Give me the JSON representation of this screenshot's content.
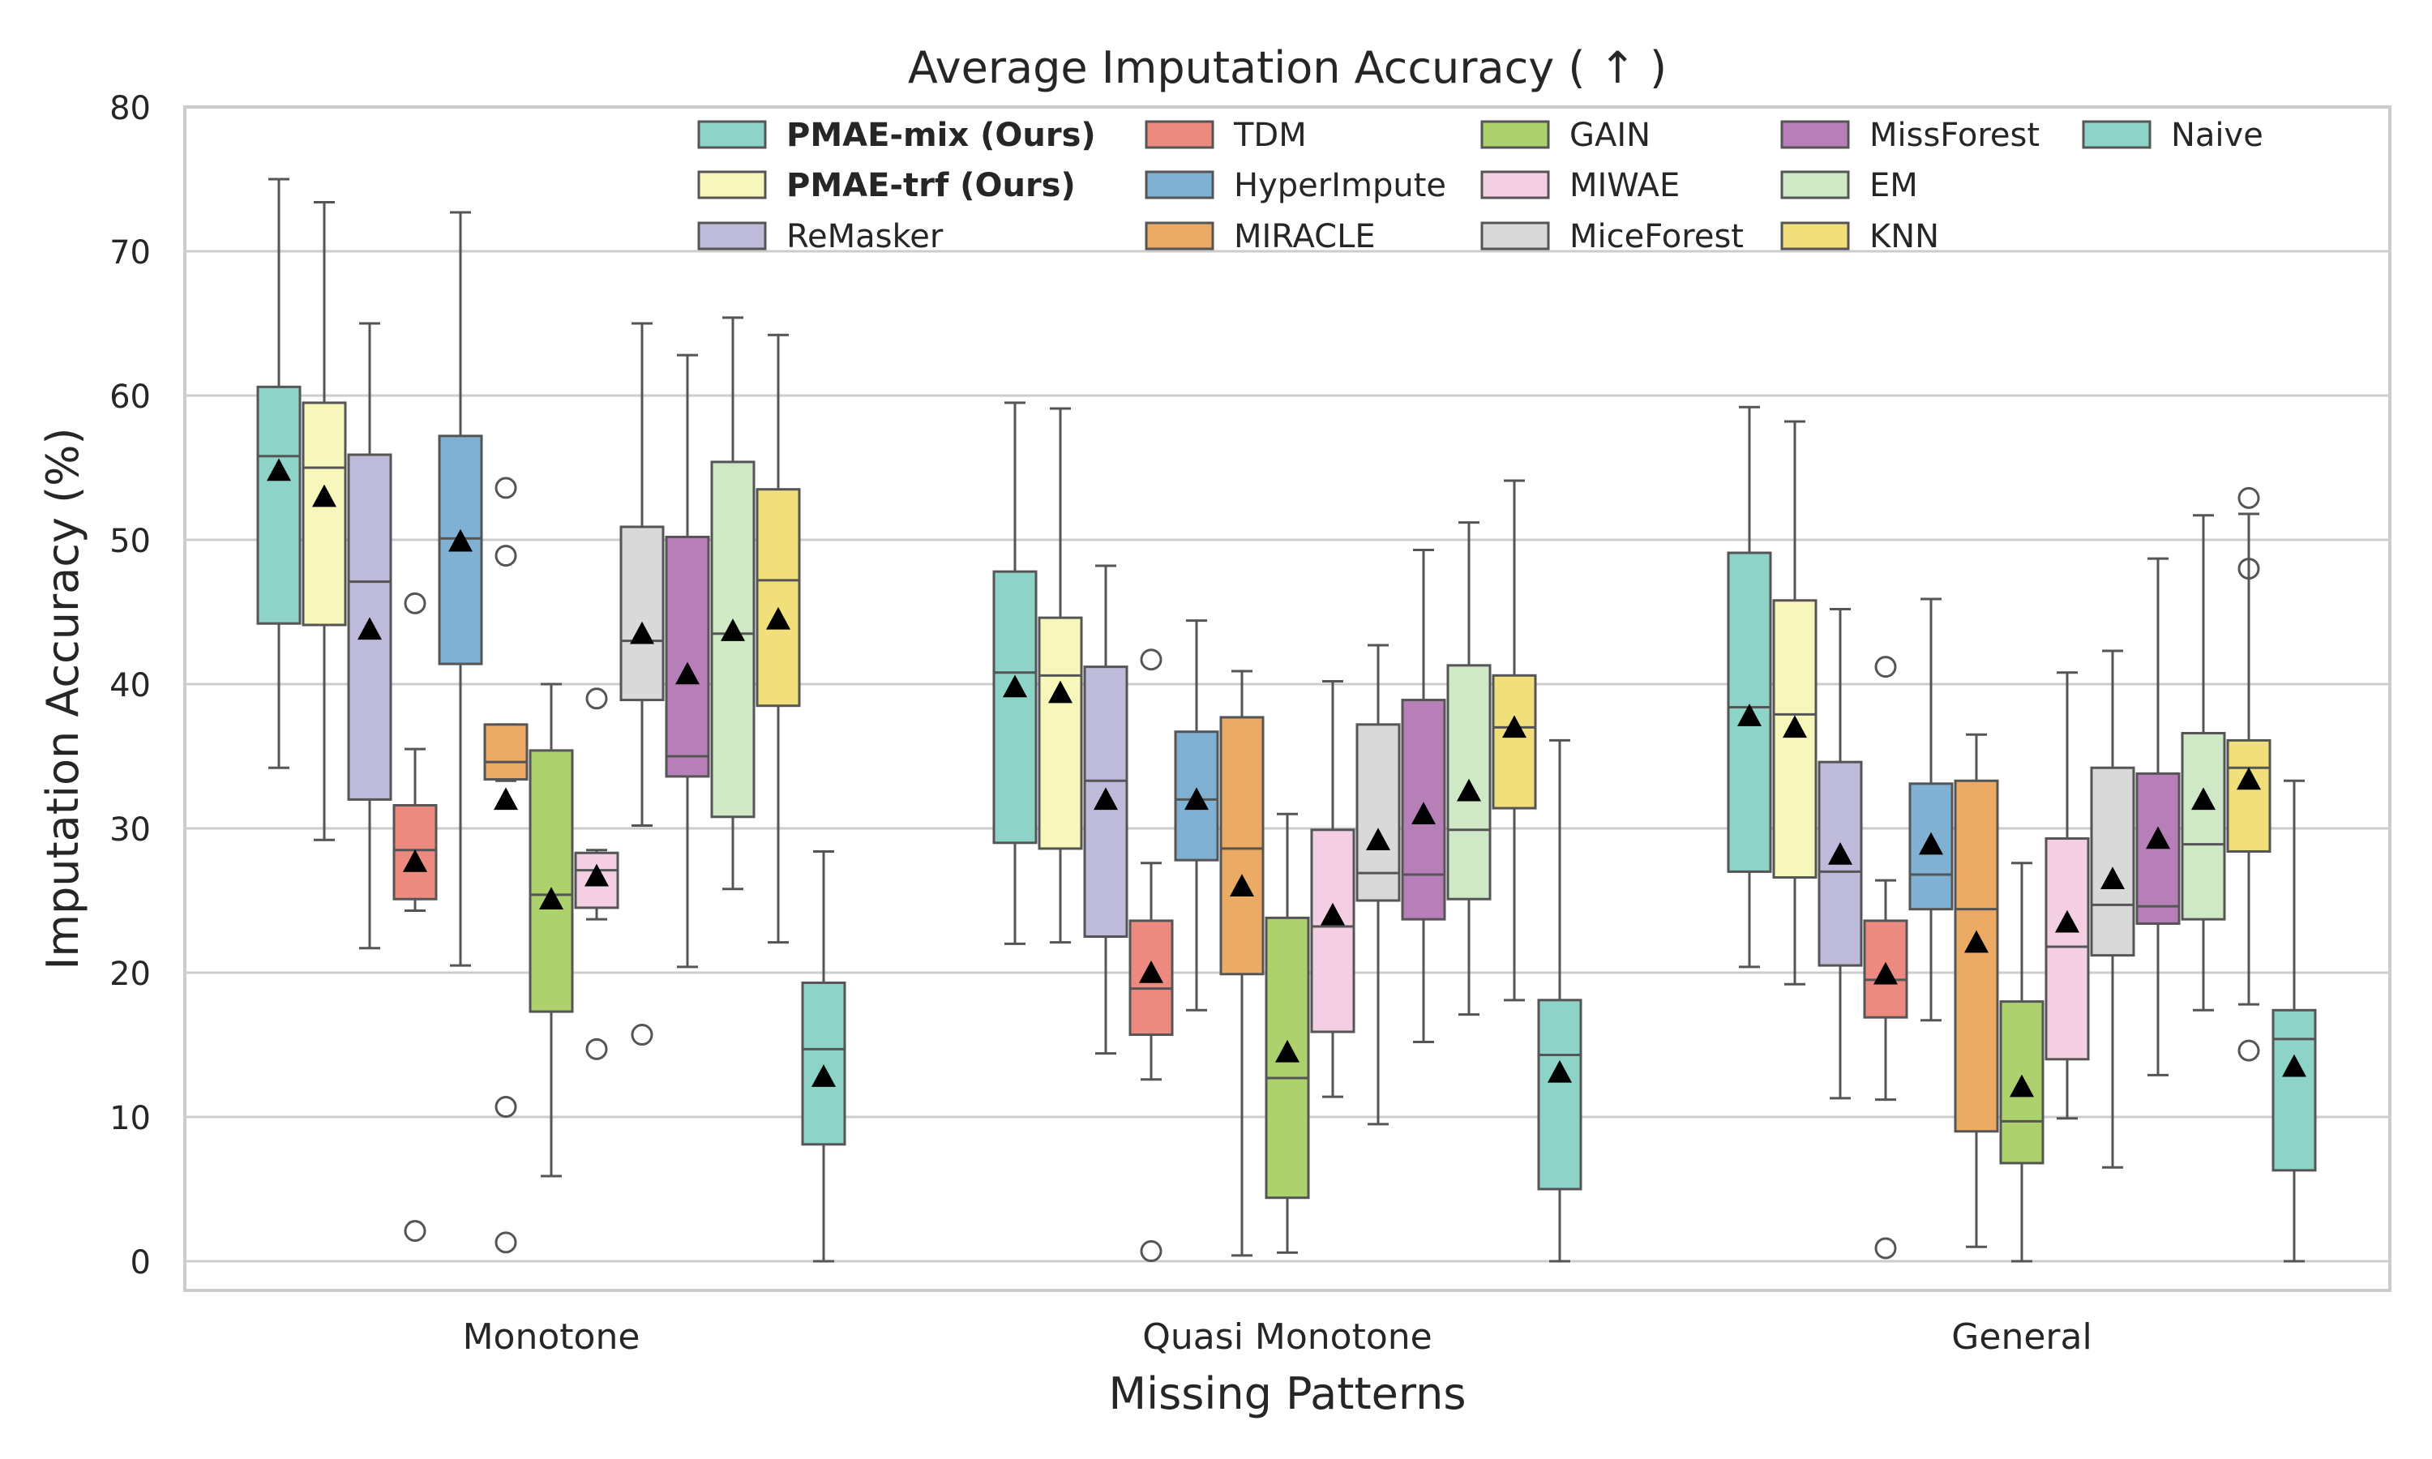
{
  "chart_data": {
    "type": "box",
    "title": "Average Imputation Accuracy ( ↑ )",
    "xlabel": "Missing Patterns",
    "ylabel": "Imputation Accuracy (%)",
    "ylim": [
      -2,
      80
    ],
    "yticks": [
      0,
      10,
      20,
      30,
      40,
      50,
      60,
      70,
      80
    ],
    "grid": true,
    "legend_position": "top",
    "categories": [
      "Monotone",
      "Quasi Monotone",
      "General"
    ],
    "series": [
      {
        "name": "PMAE-mix (Ours)",
        "bold": true,
        "color": "#8dd3c7",
        "boxes": [
          {
            "whislo": 34.2,
            "q1": 44.2,
            "med": 55.8,
            "q3": 60.6,
            "whishi": 75.0,
            "mean": 54.8,
            "fliers": []
          },
          {
            "whislo": 22.0,
            "q1": 29.0,
            "med": 40.8,
            "q3": 47.8,
            "whishi": 59.5,
            "mean": 39.8,
            "fliers": []
          },
          {
            "whislo": 20.4,
            "q1": 27.0,
            "med": 38.4,
            "q3": 49.1,
            "whishi": 59.2,
            "mean": 37.8,
            "fliers": []
          }
        ]
      },
      {
        "name": "PMAE-trf (Ours)",
        "bold": true,
        "color": "#f8f7bb",
        "boxes": [
          {
            "whislo": 29.2,
            "q1": 44.1,
            "med": 55.0,
            "q3": 59.5,
            "whishi": 73.4,
            "mean": 53.0,
            "fliers": []
          },
          {
            "whislo": 22.1,
            "q1": 28.6,
            "med": 40.6,
            "q3": 44.6,
            "whishi": 59.1,
            "mean": 39.4,
            "fliers": []
          },
          {
            "whislo": 19.2,
            "q1": 26.6,
            "med": 37.9,
            "q3": 45.8,
            "whishi": 58.2,
            "mean": 37.0,
            "fliers": []
          }
        ]
      },
      {
        "name": "ReMasker",
        "bold": false,
        "color": "#bebada",
        "boxes": [
          {
            "whislo": 21.7,
            "q1": 32.0,
            "med": 47.1,
            "q3": 55.9,
            "whishi": 65.0,
            "mean": 43.8,
            "fliers": []
          },
          {
            "whislo": 14.4,
            "q1": 22.5,
            "med": 33.3,
            "q3": 41.2,
            "whishi": 48.2,
            "mean": 32.0,
            "fliers": []
          },
          {
            "whislo": 11.3,
            "q1": 20.5,
            "med": 27.0,
            "q3": 34.6,
            "whishi": 45.2,
            "mean": 28.2,
            "fliers": []
          }
        ]
      },
      {
        "name": "TDM",
        "bold": false,
        "color": "#ec8a80",
        "boxes": [
          {
            "whislo": 24.3,
            "q1": 25.1,
            "med": 28.5,
            "q3": 31.6,
            "whishi": 35.5,
            "mean": 27.7,
            "fliers": [
              45.6,
              2.1
            ]
          },
          {
            "whislo": 12.6,
            "q1": 15.7,
            "med": 18.9,
            "q3": 23.6,
            "whishi": 27.6,
            "mean": 20.0,
            "fliers": [
              41.7,
              0.7
            ]
          },
          {
            "whislo": 11.2,
            "q1": 16.9,
            "med": 19.5,
            "q3": 23.6,
            "whishi": 26.4,
            "mean": 19.9,
            "fliers": [
              41.2,
              0.9
            ]
          }
        ]
      },
      {
        "name": "HyperImpute",
        "bold": false,
        "color": "#80b1d3",
        "boxes": [
          {
            "whislo": 20.5,
            "q1": 41.4,
            "med": 50.1,
            "q3": 57.2,
            "whishi": 72.7,
            "mean": 49.9,
            "fliers": []
          },
          {
            "whislo": 17.4,
            "q1": 27.8,
            "med": 32.0,
            "q3": 36.7,
            "whishi": 44.4,
            "mean": 32.0,
            "fliers": []
          },
          {
            "whislo": 16.7,
            "q1": 24.4,
            "med": 26.8,
            "q3": 33.1,
            "whishi": 45.9,
            "mean": 28.9,
            "fliers": []
          }
        ]
      },
      {
        "name": "MIRACLE",
        "bold": false,
        "color": "#ebab65",
        "boxes": [
          {
            "whislo": 33.3,
            "q1": 33.4,
            "med": 34.6,
            "q3": 37.2,
            "whishi": 37.2,
            "mean": 32.0,
            "fliers": [
              53.6,
              48.9,
              10.7,
              1.3
            ]
          },
          {
            "whislo": 0.4,
            "q1": 19.9,
            "med": 28.6,
            "q3": 37.7,
            "whishi": 40.9,
            "mean": 26.0,
            "fliers": []
          },
          {
            "whislo": 1.0,
            "q1": 9.0,
            "med": 24.4,
            "q3": 33.3,
            "whishi": 36.5,
            "mean": 22.1,
            "fliers": []
          }
        ]
      },
      {
        "name": "GAIN",
        "bold": false,
        "color": "#acd16d",
        "boxes": [
          {
            "whislo": 5.9,
            "q1": 17.3,
            "med": 25.4,
            "q3": 35.4,
            "whishi": 40.0,
            "mean": 25.1,
            "fliers": []
          },
          {
            "whislo": 0.6,
            "q1": 4.4,
            "med": 12.7,
            "q3": 23.8,
            "whishi": 31.0,
            "mean": 14.5,
            "fliers": []
          },
          {
            "whislo": 0.0,
            "q1": 6.8,
            "med": 9.7,
            "q3": 18.0,
            "whishi": 27.6,
            "mean": 12.1,
            "fliers": []
          }
        ]
      },
      {
        "name": "MIWAE",
        "bold": false,
        "color": "#f4cfe3",
        "boxes": [
          {
            "whislo": 23.7,
            "q1": 24.5,
            "med": 27.1,
            "q3": 28.3,
            "whishi": 28.5,
            "mean": 26.7,
            "fliers": [
              39.0,
              14.7
            ]
          },
          {
            "whislo": 11.4,
            "q1": 15.9,
            "med": 23.2,
            "q3": 29.9,
            "whishi": 40.2,
            "mean": 24.0,
            "fliers": []
          },
          {
            "whislo": 9.9,
            "q1": 14.0,
            "med": 21.8,
            "q3": 29.3,
            "whishi": 40.8,
            "mean": 23.5,
            "fliers": []
          }
        ]
      },
      {
        "name": "MiceForest",
        "bold": false,
        "color": "#d9d9d9",
        "boxes": [
          {
            "whislo": 30.2,
            "q1": 38.9,
            "med": 43.0,
            "q3": 50.9,
            "whishi": 65.0,
            "mean": 43.5,
            "fliers": [
              15.7
            ]
          },
          {
            "whislo": 9.5,
            "q1": 25.0,
            "med": 26.9,
            "q3": 37.2,
            "whishi": 42.7,
            "mean": 29.2,
            "fliers": []
          },
          {
            "whislo": 6.5,
            "q1": 21.2,
            "med": 24.7,
            "q3": 34.2,
            "whishi": 42.3,
            "mean": 26.5,
            "fliers": []
          }
        ]
      },
      {
        "name": "MissForest",
        "bold": false,
        "color": "#b77fb7",
        "boxes": [
          {
            "whislo": 20.4,
            "q1": 33.6,
            "med": 35.0,
            "q3": 50.2,
            "whishi": 62.8,
            "mean": 40.7,
            "fliers": []
          },
          {
            "whislo": 15.2,
            "q1": 23.7,
            "med": 26.8,
            "q3": 38.9,
            "whishi": 49.3,
            "mean": 31.0,
            "fliers": []
          },
          {
            "whislo": 12.9,
            "q1": 23.4,
            "med": 24.6,
            "q3": 33.8,
            "whishi": 48.7,
            "mean": 29.3,
            "fliers": []
          }
        ]
      },
      {
        "name": "EM",
        "bold": false,
        "color": "#cfe8c6",
        "boxes": [
          {
            "whislo": 25.8,
            "q1": 30.8,
            "med": 43.5,
            "q3": 55.4,
            "whishi": 65.4,
            "mean": 43.7,
            "fliers": []
          },
          {
            "whislo": 17.1,
            "q1": 25.1,
            "med": 29.9,
            "q3": 41.3,
            "whishi": 51.2,
            "mean": 32.6,
            "fliers": []
          },
          {
            "whislo": 17.4,
            "q1": 23.7,
            "med": 28.9,
            "q3": 36.6,
            "whishi": 51.7,
            "mean": 32.0,
            "fliers": []
          }
        ]
      },
      {
        "name": "KNN",
        "bold": false,
        "color": "#f0df7a",
        "boxes": [
          {
            "whislo": 22.1,
            "q1": 38.5,
            "med": 47.2,
            "q3": 53.5,
            "whishi": 64.2,
            "mean": 44.5,
            "fliers": []
          },
          {
            "whislo": 18.1,
            "q1": 31.4,
            "med": 37.0,
            "q3": 40.6,
            "whishi": 54.1,
            "mean": 37.0,
            "fliers": []
          },
          {
            "whislo": 17.8,
            "q1": 28.4,
            "med": 34.2,
            "q3": 36.1,
            "whishi": 51.8,
            "mean": 33.4,
            "fliers": [
              52.9,
              48.0,
              14.6
            ]
          }
        ]
      },
      {
        "name": "Naive",
        "bold": false,
        "color": "#8dd3c7",
        "boxes": [
          {
            "whislo": 0.0,
            "q1": 8.1,
            "med": 14.7,
            "q3": 19.3,
            "whishi": 28.4,
            "mean": 12.8,
            "fliers": []
          },
          {
            "whislo": 0.0,
            "q1": 5.0,
            "med": 14.3,
            "q3": 18.1,
            "whishi": 36.1,
            "mean": 13.1,
            "fliers": []
          },
          {
            "whislo": 0.0,
            "q1": 6.3,
            "med": 15.4,
            "q3": 17.4,
            "whishi": 33.3,
            "mean": 13.5,
            "fliers": []
          }
        ]
      }
    ]
  }
}
